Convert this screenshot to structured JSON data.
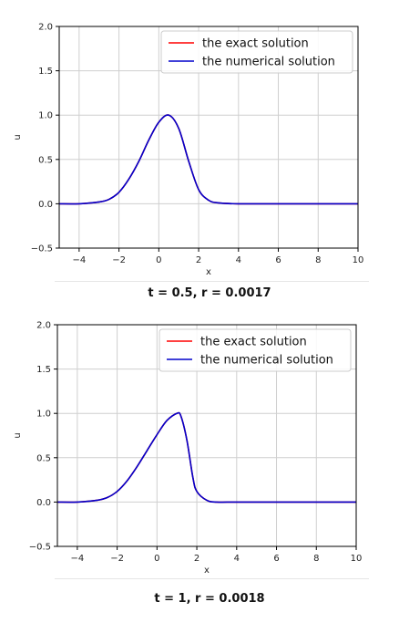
{
  "chart_data": [
    {
      "type": "line",
      "xlabel": "x",
      "ylabel": "u",
      "xlim": [
        -5,
        10
      ],
      "ylim": [
        -0.5,
        2.0
      ],
      "xticks": [
        "−4",
        "−2",
        "0",
        "2",
        "4",
        "6",
        "8",
        "10"
      ],
      "xtick_values": [
        -4,
        -2,
        0,
        2,
        4,
        6,
        8,
        10
      ],
      "yticks": [
        "−0.5",
        "0.0",
        "0.5",
        "1.0",
        "1.5",
        "2.0"
      ],
      "ytick_values": [
        -0.5,
        0.0,
        0.5,
        1.0,
        1.5,
        2.0
      ],
      "grid": true,
      "legend": "top-right",
      "caption": "t = 0.5, r = 0.0017",
      "x": [
        -5,
        -4,
        -3,
        -2.5,
        -2,
        -1.5,
        -1,
        -0.5,
        0,
        0.5,
        1,
        1.5,
        2,
        2.5,
        3,
        4,
        6,
        8,
        10
      ],
      "series": [
        {
          "name": "the exact solution",
          "color": "#ff0000",
          "values": [
            0.0,
            0.0,
            0.02,
            0.05,
            0.13,
            0.28,
            0.48,
            0.72,
            0.92,
            1.0,
            0.85,
            0.48,
            0.16,
            0.04,
            0.01,
            0.0,
            0.0,
            0.0,
            0.0
          ]
        },
        {
          "name": "the numerical solution",
          "color": "#0000cc",
          "values": [
            0.0,
            0.0,
            0.02,
            0.05,
            0.13,
            0.28,
            0.48,
            0.72,
            0.92,
            1.0,
            0.85,
            0.48,
            0.16,
            0.04,
            0.01,
            0.0,
            0.0,
            0.0,
            0.0
          ]
        }
      ]
    },
    {
      "type": "line",
      "xlabel": "x",
      "ylabel": "u",
      "xlim": [
        -5,
        10
      ],
      "ylim": [
        -0.5,
        2.0
      ],
      "xticks": [
        "−4",
        "−2",
        "0",
        "2",
        "4",
        "6",
        "8",
        "10"
      ],
      "xtick_values": [
        -4,
        -2,
        0,
        2,
        4,
        6,
        8,
        10
      ],
      "yticks": [
        "−0.5",
        "0.0",
        "0.5",
        "1.0",
        "1.5",
        "2.0"
      ],
      "ytick_values": [
        -0.5,
        0.0,
        0.5,
        1.0,
        1.5,
        2.0
      ],
      "grid": true,
      "legend": "top-right",
      "caption": "t = 1, r = 0.0018",
      "x": [
        -5,
        -4,
        -3,
        -2.5,
        -2,
        -1.5,
        -1,
        -0.5,
        0,
        0.5,
        1,
        1.2,
        1.5,
        1.8,
        2,
        2.5,
        3,
        4,
        6,
        8,
        10
      ],
      "series": [
        {
          "name": "the exact solution",
          "color": "#ff0000",
          "values": [
            0.0,
            0.0,
            0.02,
            0.05,
            0.12,
            0.24,
            0.4,
            0.58,
            0.76,
            0.92,
            1.0,
            0.97,
            0.7,
            0.28,
            0.12,
            0.02,
            0.0,
            0.0,
            0.0,
            0.0,
            0.0
          ]
        },
        {
          "name": "the numerical solution",
          "color": "#0000cc",
          "values": [
            0.0,
            0.0,
            0.02,
            0.05,
            0.12,
            0.24,
            0.4,
            0.58,
            0.76,
            0.92,
            1.0,
            0.97,
            0.7,
            0.28,
            0.12,
            0.02,
            0.0,
            0.0,
            0.0,
            0.0,
            0.0
          ]
        }
      ]
    }
  ]
}
